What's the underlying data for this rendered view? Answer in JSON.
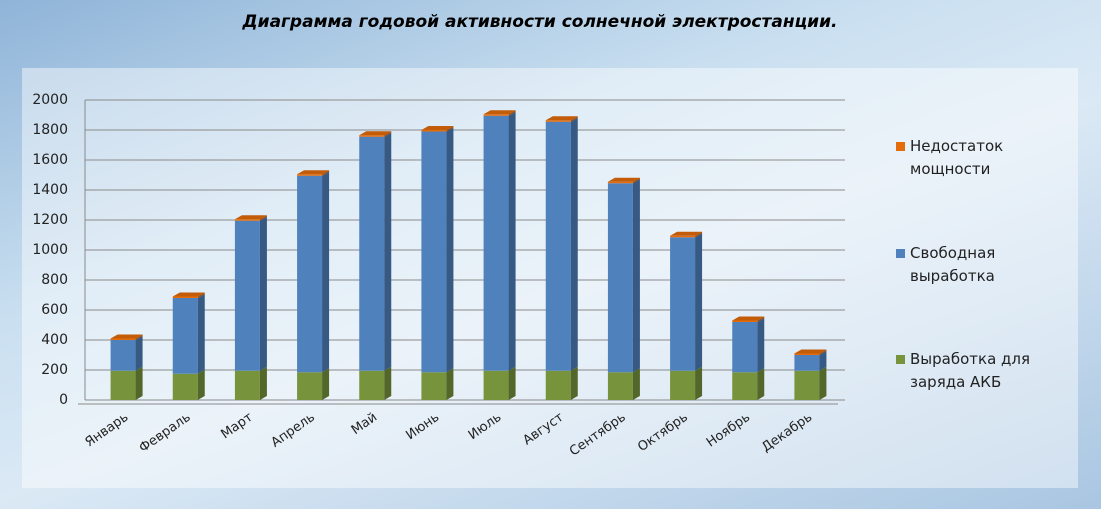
{
  "chart_data": {
    "type": "stacked_bar_3d",
    "title": "Диаграмма годовой активности солнечной электростанции.",
    "categories": [
      "Январь",
      "Февраль",
      "Март",
      "Апрель",
      "Май",
      "Июнь",
      "Июль",
      "Август",
      "Сентябрь",
      "Октябрь",
      "Ноябрь",
      "Декабрь"
    ],
    "series": [
      {
        "name": "Выработка для заряда АКБ",
        "color": "#77933c",
        "values": [
          195,
          175,
          195,
          185,
          195,
          185,
          195,
          195,
          185,
          195,
          185,
          195
        ]
      },
      {
        "name": "Свободная выработка",
        "color": "#4f81bd",
        "values": [
          205,
          505,
          1000,
          1310,
          1560,
          1605,
          1700,
          1660,
          1260,
          890,
          335,
          105
        ]
      },
      {
        "name": "Недостаток мощности",
        "color": "#e46c0a",
        "values": [
          10,
          10,
          10,
          10,
          10,
          10,
          10,
          10,
          10,
          10,
          10,
          10
        ]
      }
    ],
    "ylim": [
      0,
      2000
    ],
    "yticks": [
      0,
      200,
      400,
      600,
      800,
      1000,
      1200,
      1400,
      1600,
      1800,
      2000
    ],
    "grid": true
  }
}
